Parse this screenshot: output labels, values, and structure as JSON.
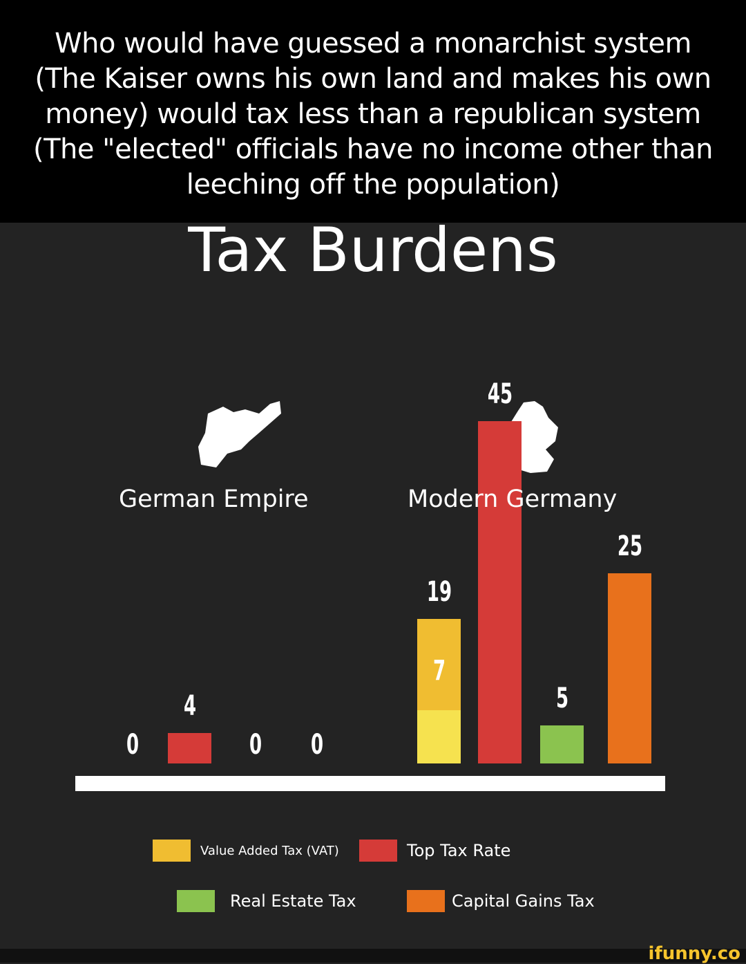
{
  "caption": "Who would have guessed a monarchist system (The Kaiser owns his own land and makes his own money) would tax less than a republican system (The \"elected\" officials have no income other than leeching off the population)",
  "watermark": "ifunny.co",
  "chart_data": {
    "type": "bar",
    "title": "Tax Burdens",
    "groups": [
      "German Empire",
      "Modern Germany"
    ],
    "series": [
      {
        "name": "Value Added Tax (VAT)",
        "color": "#f0bd31",
        "values": [
          0,
          19
        ],
        "reduced_rate": [
          null,
          7
        ],
        "reduced_color": "#f6e24f"
      },
      {
        "name": "Top Tax Rate",
        "color": "#d53b38",
        "values": [
          4,
          45
        ]
      },
      {
        "name": "Real Estate Tax",
        "color": "#8bc34f",
        "values": [
          0,
          5
        ]
      },
      {
        "name": "Capital Gains Tax",
        "color": "#e8711c",
        "values": [
          0,
          25
        ]
      }
    ],
    "legend": "bottom"
  }
}
